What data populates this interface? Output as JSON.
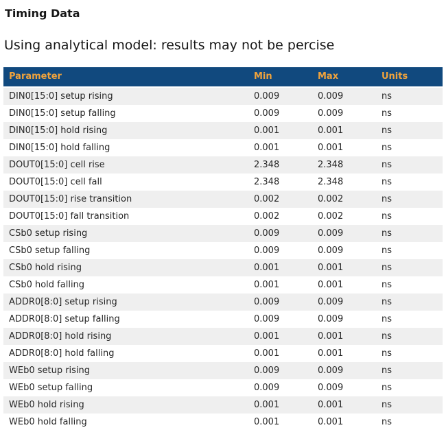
{
  "page": {
    "title": "Timing Data",
    "subtitle": "Using analytical model: results may not be percise"
  },
  "colors": {
    "header_bg": "#11497e",
    "header_text": "#f0a33c",
    "stripe": "#efefef"
  },
  "table": {
    "columns": [
      "Parameter",
      "Min",
      "Max",
      "Units"
    ],
    "rows": [
      {
        "parameter": "DIN0[15:0] setup rising",
        "min": "0.009",
        "max": "0.009",
        "units": "ns"
      },
      {
        "parameter": "DIN0[15:0] setup falling",
        "min": "0.009",
        "max": "0.009",
        "units": "ns"
      },
      {
        "parameter": "DIN0[15:0] hold rising",
        "min": "0.001",
        "max": "0.001",
        "units": "ns"
      },
      {
        "parameter": "DIN0[15:0] hold falling",
        "min": "0.001",
        "max": "0.001",
        "units": "ns"
      },
      {
        "parameter": "DOUT0[15:0] cell rise",
        "min": "2.348",
        "max": "2.348",
        "units": "ns"
      },
      {
        "parameter": "DOUT0[15:0] cell fall",
        "min": "2.348",
        "max": "2.348",
        "units": "ns"
      },
      {
        "parameter": "DOUT0[15:0] rise transition",
        "min": "0.002",
        "max": "0.002",
        "units": "ns"
      },
      {
        "parameter": "DOUT0[15:0] fall transition",
        "min": "0.002",
        "max": "0.002",
        "units": "ns"
      },
      {
        "parameter": "CSb0 setup rising",
        "min": "0.009",
        "max": "0.009",
        "units": "ns"
      },
      {
        "parameter": "CSb0 setup falling",
        "min": "0.009",
        "max": "0.009",
        "units": "ns"
      },
      {
        "parameter": "CSb0 hold rising",
        "min": "0.001",
        "max": "0.001",
        "units": "ns"
      },
      {
        "parameter": "CSb0 hold falling",
        "min": "0.001",
        "max": "0.001",
        "units": "ns"
      },
      {
        "parameter": "ADDR0[8:0] setup rising",
        "min": "0.009",
        "max": "0.009",
        "units": "ns"
      },
      {
        "parameter": "ADDR0[8:0] setup falling",
        "min": "0.009",
        "max": "0.009",
        "units": "ns"
      },
      {
        "parameter": "ADDR0[8:0] hold rising",
        "min": "0.001",
        "max": "0.001",
        "units": "ns"
      },
      {
        "parameter": "ADDR0[8:0] hold falling",
        "min": "0.001",
        "max": "0.001",
        "units": "ns"
      },
      {
        "parameter": "WEb0 setup rising",
        "min": "0.009",
        "max": "0.009",
        "units": "ns"
      },
      {
        "parameter": "WEb0 setup falling",
        "min": "0.009",
        "max": "0.009",
        "units": "ns"
      },
      {
        "parameter": "WEb0 hold rising",
        "min": "0.001",
        "max": "0.001",
        "units": "ns"
      },
      {
        "parameter": "WEb0 hold falling",
        "min": "0.001",
        "max": "0.001",
        "units": "ns"
      }
    ]
  }
}
